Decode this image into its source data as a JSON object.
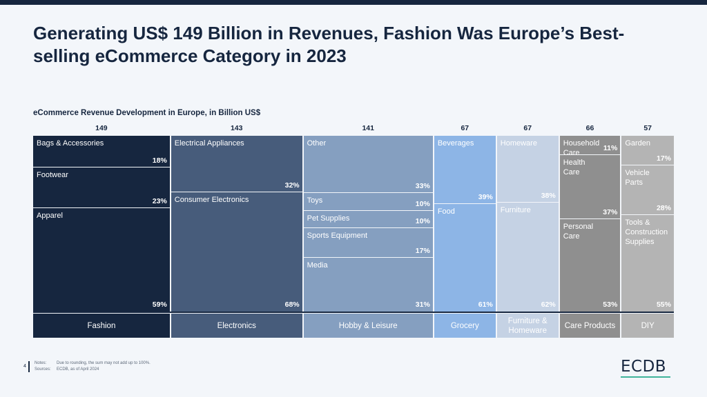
{
  "title": "Generating US$ 149 Billion in Revenues, Fashion Was Europe’s Best-selling eCommerce Category in 2023",
  "subtitle": "eCommerce Revenue Development in Europe, in Billion US$",
  "page_number": "4",
  "notes_label": "Notes:",
  "notes_text": "Due to rounding, the sum may not add up to 100%.",
  "sources_label": "Sources:",
  "sources_text": "ECDB, as of April 2024",
  "logo": "ECDB",
  "colors": {
    "background": "#f3f6fa",
    "title": "#16263f",
    "accent_underline": "#3fb39a"
  },
  "chart_data": {
    "type": "mekko",
    "unit": "Billion US$",
    "categories": [
      {
        "name": "Fashion",
        "total": 149,
        "color": "#16263f",
        "text_color": "#ffffff",
        "segments": [
          {
            "label": "Bags & Accessories",
            "pct": 18
          },
          {
            "label": "Footwear",
            "pct": 23
          },
          {
            "label": "Apparel",
            "pct": 59
          }
        ]
      },
      {
        "name": "Electronics",
        "total": 143,
        "color": "#475c7b",
        "text_color": "#ffffff",
        "segments": [
          {
            "label": "Electrical Appliances",
            "pct": 32
          },
          {
            "label": "Consumer Electronics",
            "pct": 68
          }
        ]
      },
      {
        "name": "Hobby & Leisure",
        "total": 141,
        "color": "#859fc0",
        "text_color": "#ffffff",
        "segments": [
          {
            "label": "Other",
            "pct": 33
          },
          {
            "label": "Toys",
            "pct": 10
          },
          {
            "label": "Pet Supplies",
            "pct": 10
          },
          {
            "label": "Sports Equipment",
            "pct": 17
          },
          {
            "label": "Media",
            "pct": 31
          }
        ]
      },
      {
        "name": "Grocery",
        "total": 67,
        "color": "#8db5e6",
        "text_color": "#ffffff",
        "segments": [
          {
            "label": "Beverages",
            "pct": 39
          },
          {
            "label": "Food",
            "pct": 61
          }
        ]
      },
      {
        "name": "Furniture & Homeware",
        "total": 67,
        "color": "#c5d2e4",
        "text_color": "#ffffff",
        "segments": [
          {
            "label": "Homeware",
            "pct": 38
          },
          {
            "label": "Furniture",
            "pct": 62
          }
        ]
      },
      {
        "name": "Care Products",
        "total": 66,
        "color": "#8f8f8f",
        "text_color": "#ffffff",
        "segments": [
          {
            "label": "Household Care",
            "pct": 11
          },
          {
            "label": "Health Care",
            "pct": 37
          },
          {
            "label": "Personal Care",
            "pct": 53
          }
        ]
      },
      {
        "name": "DIY",
        "total": 57,
        "color": "#b4b4b4",
        "text_color": "#ffffff",
        "segments": [
          {
            "label": "Garden",
            "pct": 17
          },
          {
            "label": "Vehicle Parts",
            "pct": 28
          },
          {
            "label": "Tools & Construction Supplies",
            "pct": 55
          }
        ]
      }
    ]
  }
}
